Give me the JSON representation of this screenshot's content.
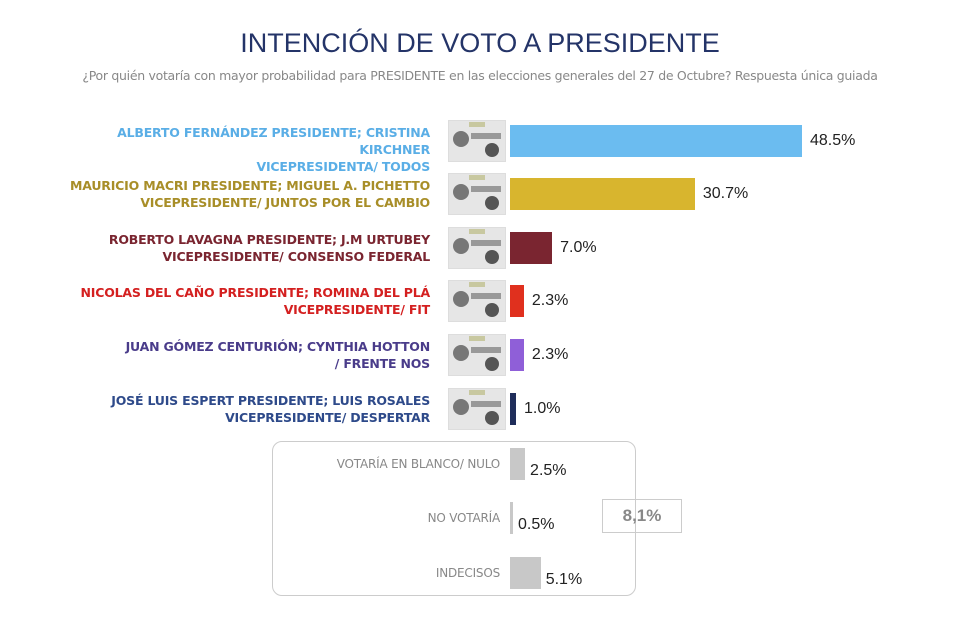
{
  "chart_data": {
    "type": "bar",
    "orientation": "horizontal",
    "title": "INTENCIÓN DE VOTO A PRESIDENTE",
    "subtitle": "¿Por quién votaría con mayor probabilidad para PRESIDENTE en las elecciones generales del 27 de Octubre? Respuesta única guiada",
    "unit": "%",
    "categories": [
      {
        "label": [
          "ALBERTO FERNÁNDEZ PRESIDENTE; CRISTINA KIRCHNER",
          "VICEPRESIDENTA/ TODOS"
        ],
        "value": 48.5,
        "value_label": "48.5%",
        "color": "#6bbcf0",
        "label_color": "#5aaee6",
        "thumb": true
      },
      {
        "label": [
          "MAURICIO MACRI PRESIDENTE; MIGUEL A. PICHETTO",
          "VICEPRESIDENTE/ JUNTOS POR EL CAMBIO"
        ],
        "value": 30.7,
        "value_label": "30.7%",
        "color": "#d8b52e",
        "label_color": "#a88e28",
        "thumb": true
      },
      {
        "label": [
          "ROBERTO LAVAGNA PRESIDENTE; J.M URTUBEY",
          "VICEPRESIDENTE/ CONSENSO FEDERAL"
        ],
        "value": 7.0,
        "value_label": "7.0%",
        "color": "#7a2530",
        "label_color": "#7a2530",
        "thumb": true
      },
      {
        "label": [
          "NICOLAS DEL CAÑO PRESIDENTE; ROMINA DEL PLÁ",
          "VICEPRESIDENTE/ FIT"
        ],
        "value": 2.3,
        "value_label": "2.3%",
        "color": "#e0301e",
        "label_color": "#d42020",
        "thumb": true
      },
      {
        "label": [
          "JUAN GÓMEZ CENTURIÓN; CYNTHIA HOTTON",
          "/ FRENTE NOS"
        ],
        "value": 2.3,
        "value_label": "2.3%",
        "color": "#8f5fd8",
        "label_color": "#4a3c8a",
        "thumb": true
      },
      {
        "label": [
          "JOSÉ LUIS ESPERT PRESIDENTE; LUIS ROSALES",
          "VICEPRESIDENTE/ DESPERTAR"
        ],
        "value": 1.0,
        "value_label": "1.0%",
        "color": "#1f2d5a",
        "label_color": "#2e4a8a",
        "thumb": true
      },
      {
        "label": [
          "VOTARÍA EN BLANCO/ NULO"
        ],
        "value": 2.5,
        "value_label": "2.5%",
        "color": "#c8c8c8",
        "label_color": "#888",
        "thumb": false
      },
      {
        "label": [
          "NO VOTARÍA"
        ],
        "value": 0.5,
        "value_label": "0.5%",
        "color": "#c8c8c8",
        "label_color": "#888",
        "thumb": false
      },
      {
        "label": [
          "INDECISOS"
        ],
        "value": 5.1,
        "value_label": "5.1%",
        "color": "#c8c8c8",
        "label_color": "#888",
        "thumb": false
      }
    ],
    "group_total_label": "8,1%"
  }
}
